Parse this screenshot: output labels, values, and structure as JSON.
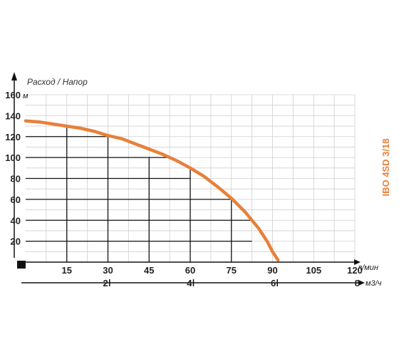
{
  "chart_data": {
    "type": "line",
    "title": "Расход / Напор",
    "model_label": "IBO 4SD 3/18",
    "y_unit": "м",
    "x_unit": "л/мин",
    "x2_unit": "м3/ч",
    "ylim": [
      0,
      160
    ],
    "xlim": [
      0,
      120
    ],
    "x2lim": [
      0,
      8
    ],
    "y_ticks": [
      "20",
      "40",
      "60",
      "80",
      "100",
      "120",
      "140",
      "160"
    ],
    "x_ticks": [
      "15",
      "30",
      "45",
      "60",
      "75",
      "90",
      "105",
      "120"
    ],
    "x2_ticks": [
      "2",
      "4",
      "6",
      "8"
    ],
    "grid": true,
    "accent_color": "#e8803a",
    "series": [
      {
        "color": "#e8803a",
        "x": [
          0,
          5,
          10,
          15,
          20,
          25,
          30,
          35,
          40,
          45,
          50,
          55,
          60,
          65,
          70,
          75,
          80,
          85,
          88,
          90,
          92
        ],
        "y": [
          135,
          134,
          132,
          130,
          128,
          125,
          121,
          118,
          113,
          108,
          103,
          97,
          90,
          82,
          72,
          61,
          48,
          32,
          20,
          10,
          2
        ]
      }
    ]
  }
}
